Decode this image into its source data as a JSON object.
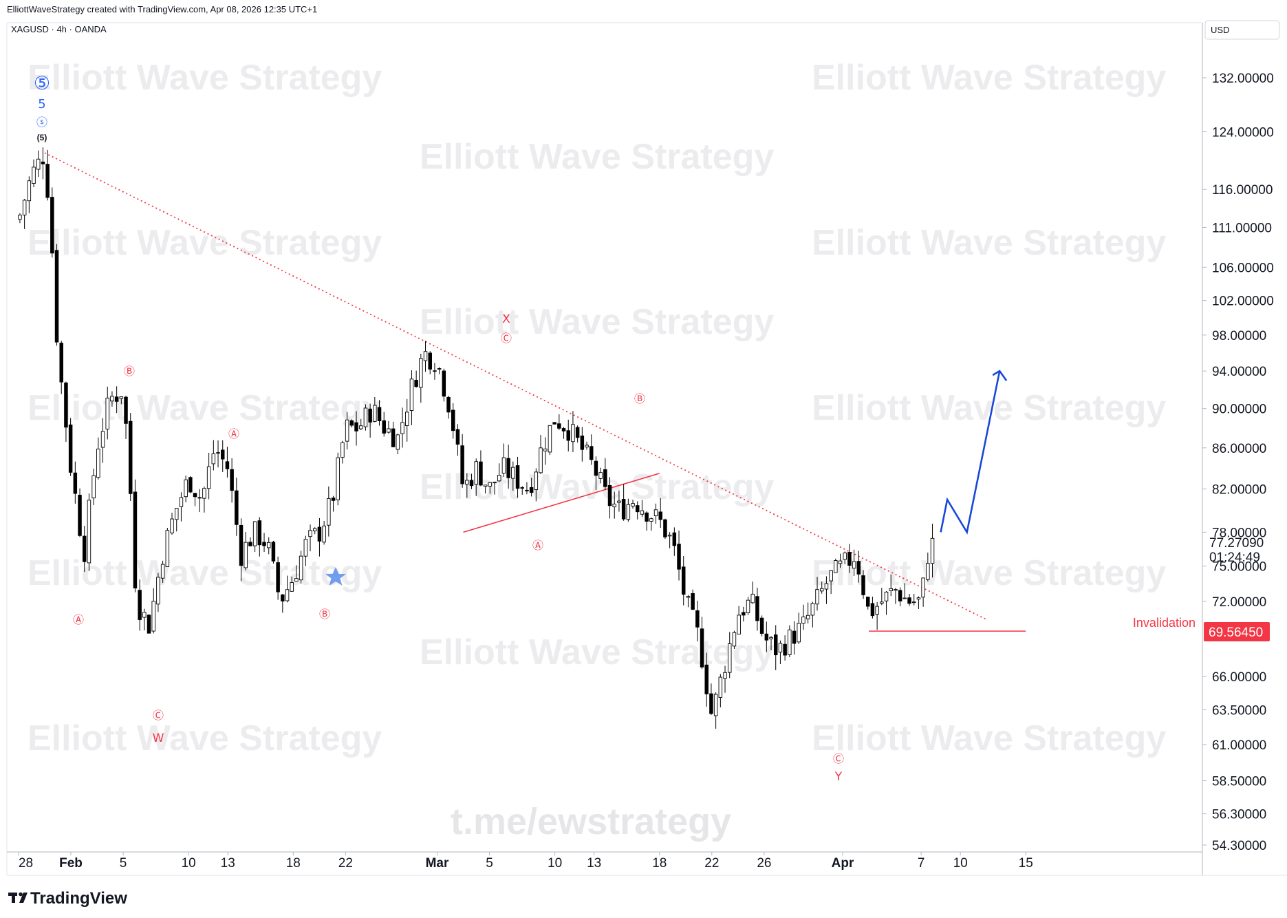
{
  "header": {
    "attribution": "ElliottWaveStrategy created with TradingView.com, Apr 08, 2026 12:35 UTC+1",
    "symbol_line": "XAGUSD · 4h · OANDA",
    "currency": "USD"
  },
  "watermark": {
    "text": "Elliott Wave Strategy",
    "link": "t.me/ewstrategy"
  },
  "logo": {
    "text": "TradingView"
  },
  "colors": {
    "up_candle": "#ffffff",
    "down_candle": "#000000",
    "wick": "#000000",
    "trendline": "#f23645",
    "projection": "#1848d8",
    "wave_red": "#f23645",
    "wave_blue": "#2962ff",
    "price_badge": "#f23645"
  },
  "chart_data": {
    "type": "candlestick",
    "symbol": "XAGUSD",
    "timeframe": "4h",
    "broker": "OANDA",
    "scale": "log",
    "ylim": [
      54.3,
      140
    ],
    "current_price": "77.27090",
    "countdown": "01:24:49",
    "invalidation_price": "69.56450",
    "invalidation_label": "Invalidation",
    "price_ticks": [
      "132.00000",
      "124.00000",
      "116.00000",
      "111.00000",
      "106.00000",
      "102.00000",
      "98.00000",
      "94.00000",
      "90.00000",
      "86.00000",
      "82.00000",
      "78.00000",
      "75.00000",
      "72.00000",
      "66.00000",
      "63.50000",
      "61.00000",
      "58.50000",
      "56.30000",
      "54.30000"
    ],
    "price_tick_values": [
      132,
      124,
      116,
      111,
      106,
      102,
      98,
      94,
      90,
      86,
      82,
      78,
      75,
      72,
      66,
      63.5,
      61,
      58.5,
      56.3,
      54.3
    ],
    "date_ticks": [
      "28",
      "Feb",
      "5",
      "10",
      "13",
      "18",
      "22",
      "Mar",
      "5",
      "10",
      "13",
      "18",
      "22",
      "26",
      "Apr",
      "7",
      "10",
      "15"
    ],
    "bold_date_ticks": [
      "Feb",
      "Mar",
      "Apr"
    ],
    "path": [
      [
        "Jan 28",
        112
      ],
      [
        "Jan 29",
        118
      ],
      [
        "Jan 30",
        121
      ],
      [
        "Jan 30 12h",
        110
      ],
      [
        "Jan 31",
        96
      ],
      [
        "Feb 1",
        84
      ],
      [
        "Feb 2",
        76
      ],
      [
        "Feb 3",
        86
      ],
      [
        "Feb 4",
        91
      ],
      [
        "Feb 5",
        92
      ],
      [
        "Feb 5 12h",
        83
      ],
      [
        "Feb 6",
        72
      ],
      [
        "Feb 7",
        70
      ],
      [
        "Feb 8",
        76
      ],
      [
        "Feb 9",
        80
      ],
      [
        "Feb 10",
        83
      ],
      [
        "Feb 11",
        81
      ],
      [
        "Feb 12",
        86
      ],
      [
        "Feb 13",
        84
      ],
      [
        "Feb 14",
        76
      ],
      [
        "Feb 15",
        78
      ],
      [
        "Feb 16",
        77
      ],
      [
        "Feb 17",
        72
      ],
      [
        "Feb 18",
        74
      ],
      [
        "Feb 19",
        77
      ],
      [
        "Feb 20",
        78
      ],
      [
        "Feb 21",
        81
      ],
      [
        "Feb 22",
        88
      ],
      [
        "Feb 23",
        88
      ],
      [
        "Feb 24",
        90
      ],
      [
        "Feb 25",
        88
      ],
      [
        "Feb 26",
        87
      ],
      [
        "Feb 27",
        92
      ],
      [
        "Feb 28",
        96
      ],
      [
        "Mar 1",
        95
      ],
      [
        "Mar 2",
        90
      ],
      [
        "Mar 3",
        82
      ],
      [
        "Mar 4",
        84
      ],
      [
        "Mar 5",
        82
      ],
      [
        "Mar 6",
        84
      ],
      [
        "Mar 7",
        83
      ],
      [
        "Mar 8",
        82
      ],
      [
        "Mar 9",
        86
      ],
      [
        "Mar 10",
        89
      ],
      [
        "Mar 11",
        88
      ],
      [
        "Mar 12",
        86
      ],
      [
        "Mar 13",
        84
      ],
      [
        "Mar 14",
        81
      ],
      [
        "Mar 15",
        80
      ],
      [
        "Mar 16",
        81
      ],
      [
        "Mar 17",
        80
      ],
      [
        "Mar 18",
        79
      ],
      [
        "Mar 19",
        77
      ],
      [
        "Mar 20",
        72
      ],
      [
        "Mar 21",
        69
      ],
      [
        "Mar 22",
        63
      ],
      [
        "Mar 23",
        67
      ],
      [
        "Mar 24",
        71
      ],
      [
        "Mar 25",
        72
      ],
      [
        "Mar 26",
        69
      ],
      [
        "Mar 27",
        68
      ],
      [
        "Mar 28",
        69
      ],
      [
        "Mar 29",
        70
      ],
      [
        "Mar 30",
        72
      ],
      [
        "Mar 31",
        74
      ],
      [
        "Apr 1",
        75
      ],
      [
        "Apr 2",
        76
      ],
      [
        "Apr 3",
        71
      ],
      [
        "Apr 4",
        72
      ],
      [
        "Apr 5",
        73
      ],
      [
        "Apr 6",
        72
      ],
      [
        "Apr 7",
        72
      ],
      [
        "Apr 7 12h",
        76
      ],
      [
        "Apr 8",
        77.27
      ]
    ],
    "projection": [
      [
        "Apr 8 12h",
        78
      ],
      [
        "Apr 9",
        81
      ],
      [
        "Apr 10 12h",
        78
      ],
      [
        "Apr 13",
        94
      ]
    ],
    "trendlines": [
      {
        "style": "dotted",
        "from": [
          "Jan 30",
          121
        ],
        "to": [
          "Apr 12",
          70.5
        ]
      },
      {
        "style": "solid",
        "from": [
          "Mar 3",
          78
        ],
        "to": [
          "Mar 18",
          83.5
        ]
      },
      {
        "style": "solid",
        "from": [
          "Apr 3",
          69.56
        ],
        "to": [
          "Apr 15",
          69.56
        ]
      }
    ],
    "wave_labels": [
      "⑤",
      "5",
      "ⓢ",
      "(5)",
      "Ⓑ",
      "Ⓐ",
      "Ⓐ",
      "Ⓒ",
      "W",
      "Ⓑ",
      "X",
      "Ⓒ",
      "Ⓑ",
      "Ⓐ",
      "Ⓒ",
      "Y"
    ],
    "grid": false,
    "legend": "none"
  }
}
